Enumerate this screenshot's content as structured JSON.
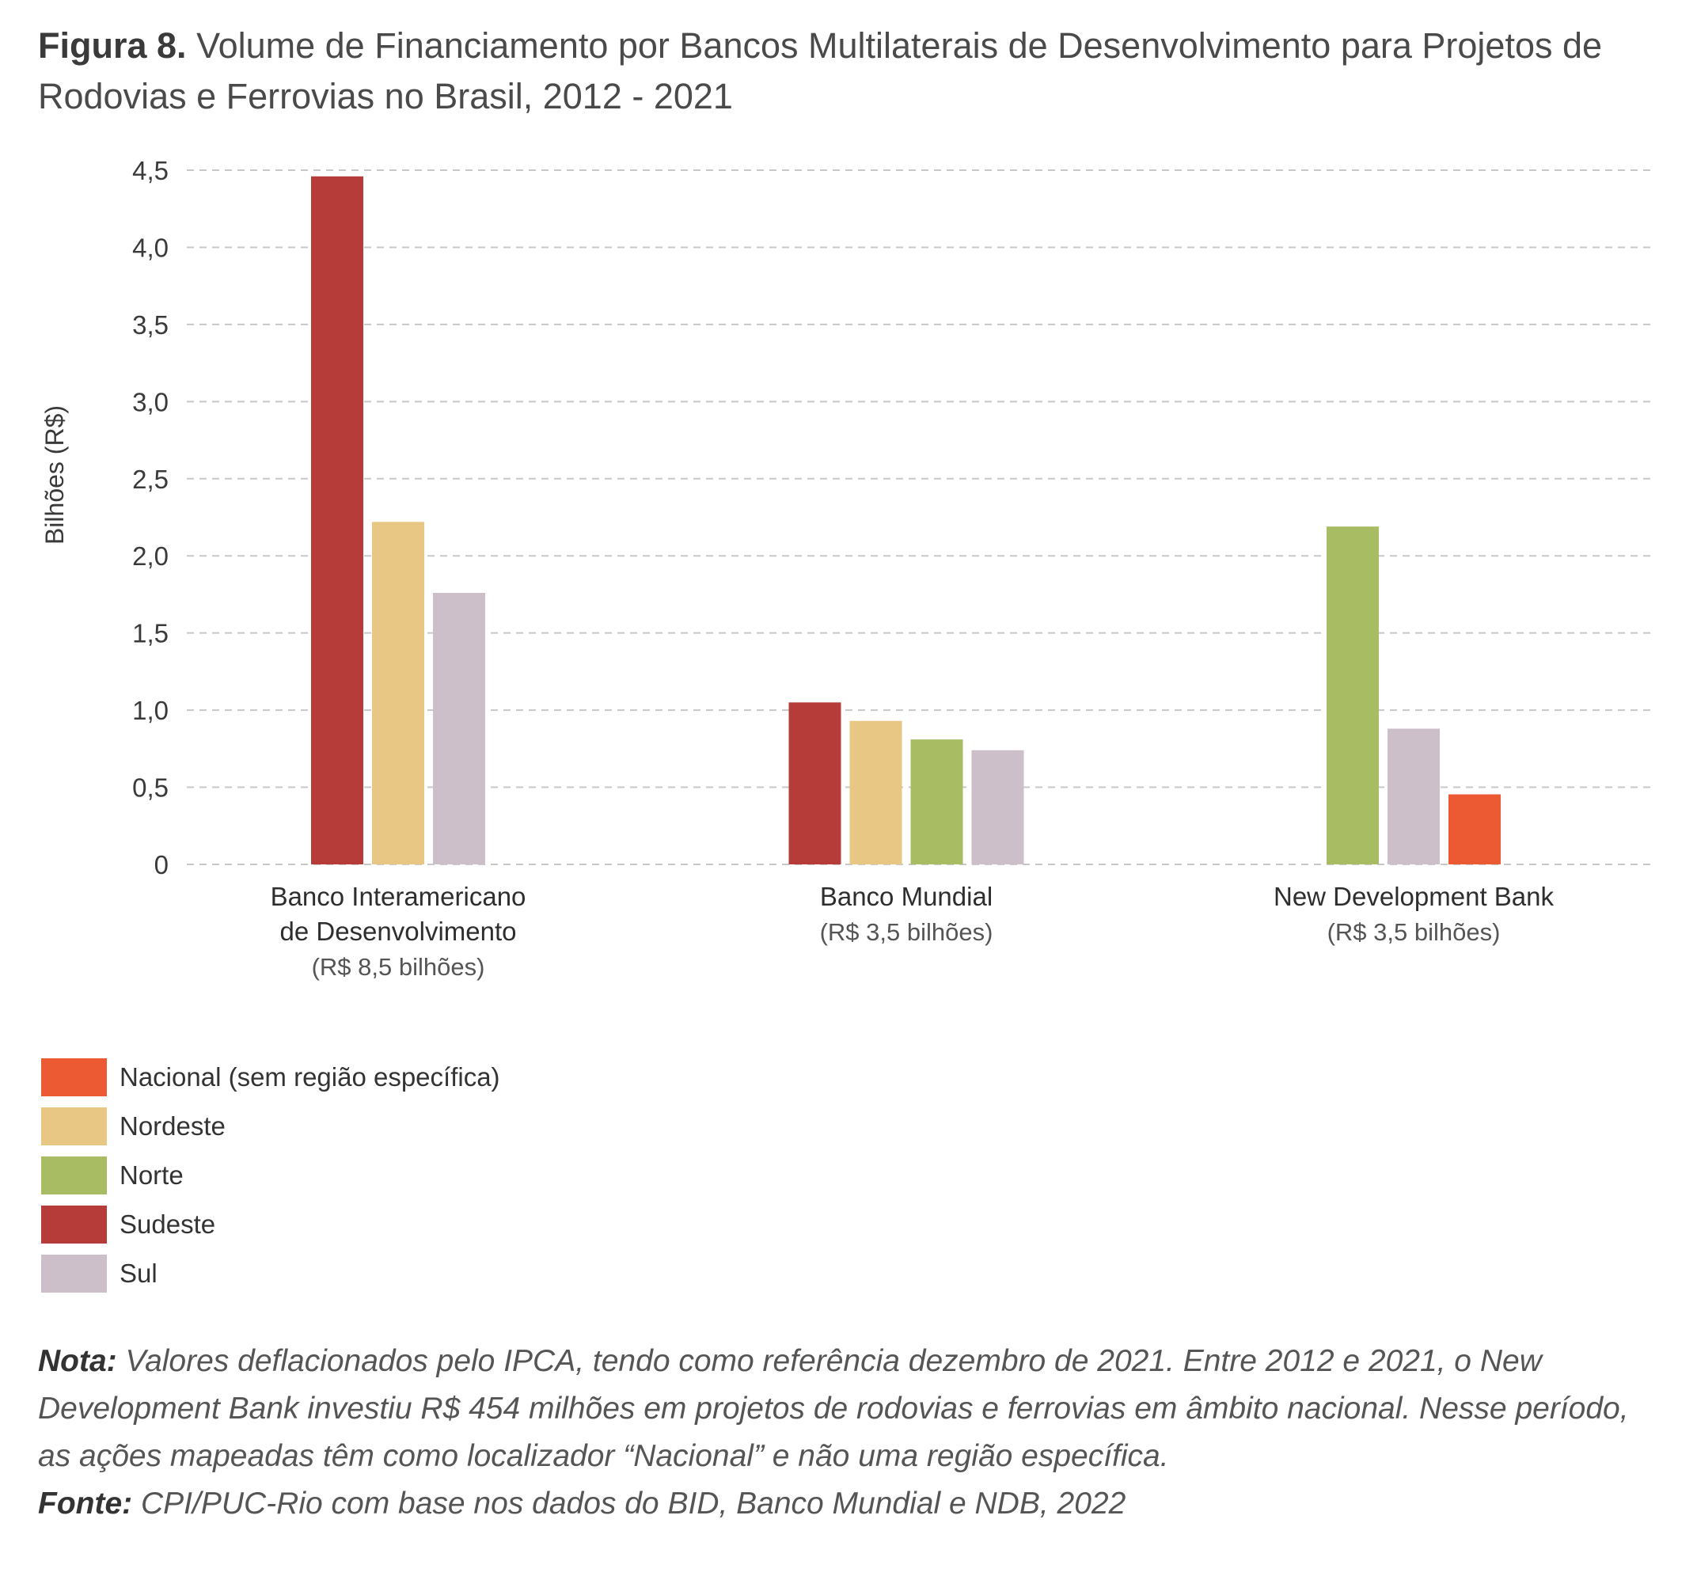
{
  "title": {
    "label": "Figura 8.",
    "text": "Volume de Financiamento por Bancos Multilaterais de Desenvolvimento para Projetos de Rodovias e Ferrovias no Brasil, 2012 - 2021"
  },
  "chart_data": {
    "type": "bar",
    "ylabel": "Bilhões (R$)",
    "ylim": [
      0,
      4.5
    ],
    "yticks": [
      {
        "value": 0,
        "label": "0"
      },
      {
        "value": 0.5,
        "label": "0,5"
      },
      {
        "value": 1.0,
        "label": "1,0"
      },
      {
        "value": 1.5,
        "label": "1,5"
      },
      {
        "value": 2.0,
        "label": "2,0"
      },
      {
        "value": 2.5,
        "label": "2,5"
      },
      {
        "value": 3.0,
        "label": "3,0"
      },
      {
        "value": 3.5,
        "label": "3,5"
      },
      {
        "value": 4.0,
        "label": "4,0"
      },
      {
        "value": 4.5,
        "label": "4,5"
      }
    ],
    "grid": true,
    "legend_position": "bottom-left",
    "categories": [
      {
        "lines": [
          "Banco Interamericano",
          "de Desenvolvimento"
        ],
        "sub": "(R$ 8,5 bilhões)"
      },
      {
        "lines": [
          "Banco Mundial"
        ],
        "sub": "(R$ 3,5 bilhões)"
      },
      {
        "lines": [
          "New Development Bank"
        ],
        "sub": "(R$ 3,5 bilhões)"
      }
    ],
    "series": [
      {
        "name": "Nacional (sem região específica)",
        "color": "#ec5a33",
        "values": [
          null,
          null,
          0.454
        ]
      },
      {
        "name": "Nordeste",
        "color": "#e8c683",
        "values": [
          2.22,
          0.93,
          null
        ]
      },
      {
        "name": "Norte",
        "color": "#a7bc63",
        "values": [
          null,
          0.81,
          2.19
        ]
      },
      {
        "name": "Sudeste",
        "color": "#b53c39",
        "values": [
          4.46,
          1.05,
          null
        ]
      },
      {
        "name": "Sul",
        "color": "#cdbfca",
        "values": [
          1.76,
          0.74,
          0.88
        ]
      }
    ],
    "bar_order": [
      [
        "Sudeste",
        "Nordeste",
        "Sul"
      ],
      [
        "Sudeste",
        "Nordeste",
        "Norte",
        "Sul"
      ],
      [
        "Norte",
        "Sul",
        "Nacional (sem região específica)"
      ]
    ]
  },
  "notes": {
    "nota_label": "Nota:",
    "nota_text": "Valores deflacionados pelo IPCA, tendo como referência dezembro de 2021. Entre 2012 e 2021, o New Development Bank investiu R$ 454 milhões em projetos de rodovias e ferrovias em âmbito nacional. Nesse período, as ações mapeadas têm como localizador “Nacional” e não uma região específica.",
    "fonte_label": "Fonte:",
    "fonte_text": "CPI/PUC-Rio com base nos dados do BID, Banco Mundial e NDB, 2022"
  }
}
